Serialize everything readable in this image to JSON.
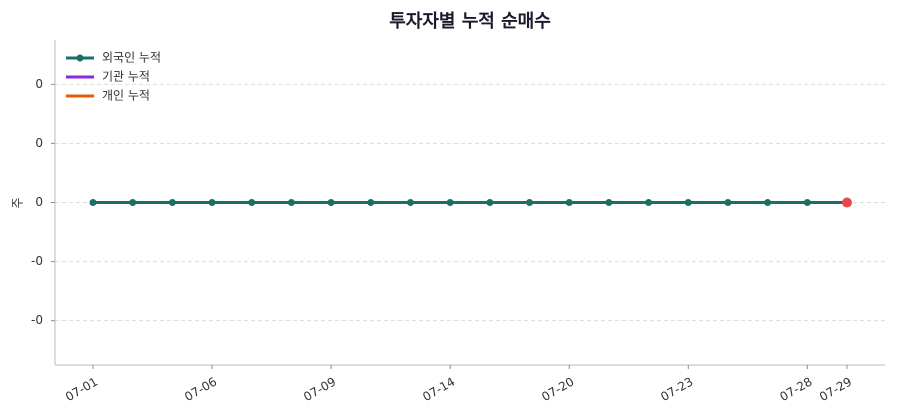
{
  "chart_data": {
    "type": "line",
    "title": "투자자별 누적 순매수",
    "y_label": "주",
    "categories": [
      "07-01",
      null,
      null,
      "07-06",
      null,
      null,
      "07-09",
      null,
      null,
      "07-14",
      null,
      null,
      "07-20",
      null,
      null,
      "07-23",
      null,
      null,
      "07-28",
      "07-29"
    ],
    "series": [
      {
        "name": "외국인 누적",
        "color": "#1a7068",
        "markers": true,
        "values": [
          0,
          0,
          0,
          0,
          0,
          0,
          0,
          0,
          0,
          0,
          0,
          0,
          0,
          0,
          0,
          0,
          0,
          0,
          0,
          0
        ]
      },
      {
        "name": "기관 누적",
        "color": "#8a2be2",
        "markers": false,
        "values": [
          0,
          0,
          0,
          0,
          0,
          0,
          0,
          0,
          0,
          0,
          0,
          0,
          0,
          0,
          0,
          0,
          0,
          0,
          0,
          0
        ]
      },
      {
        "name": "개인 누적",
        "color": "#e8590c",
        "markers": false,
        "values": [
          0,
          0,
          0,
          0,
          0,
          0,
          0,
          0,
          0,
          0,
          0,
          0,
          0,
          0,
          0,
          0,
          0,
          0,
          0,
          0
        ]
      }
    ],
    "last_point_color": "#e5484d",
    "ylim": [
      -0.055,
      0.055
    ],
    "yticks": [
      {
        "value": 0.04,
        "label": "0"
      },
      {
        "value": 0.02,
        "label": "0"
      },
      0,
      {
        "value": -0.02,
        "label": "-0"
      },
      {
        "value": -0.04,
        "label": "-0"
      }
    ],
    "grid": true,
    "legend": "upper-left"
  }
}
